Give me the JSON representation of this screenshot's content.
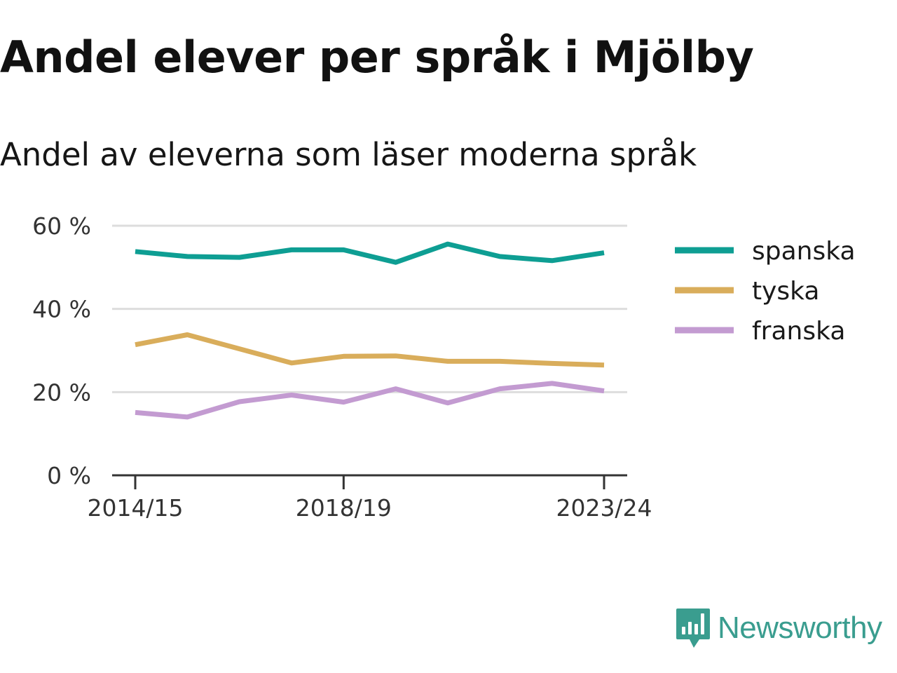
{
  "header": {
    "title": "Andel elever per språk i Mjölby",
    "subtitle": "Andel av eleverna som läser moderna språk"
  },
  "brand": {
    "name": "Newsworthy",
    "icon": "newsworthy-logo-icon",
    "color": "#3a9d8f"
  },
  "chart_data": {
    "type": "line",
    "x": [
      "2014/15",
      "2015/16",
      "2016/17",
      "2017/18",
      "2018/19",
      "2019/20",
      "2020/21",
      "2021/22",
      "2022/23",
      "2023/24"
    ],
    "x_tick_labels": [
      "2014/15",
      "2018/19",
      "2023/24"
    ],
    "y_ticks": [
      0,
      20,
      40,
      60
    ],
    "y_tick_labels": [
      "0 %",
      "20 %",
      "40 %",
      "60 %"
    ],
    "ylim": [
      0,
      60
    ],
    "grid": true,
    "legend_position": "right",
    "series": [
      {
        "name": "spanska",
        "color": "#0e9e93",
        "values": [
          53.8,
          52.6,
          52.4,
          54.2,
          54.2,
          51.2,
          55.6,
          52.6,
          51.6,
          53.5
        ]
      },
      {
        "name": "tyska",
        "color": "#d9ad5b",
        "values": [
          31.4,
          33.8,
          30.4,
          27.0,
          28.6,
          28.7,
          27.4,
          27.4,
          26.9,
          26.5
        ]
      },
      {
        "name": "franska",
        "color": "#c39bd1",
        "values": [
          15.1,
          14.0,
          17.7,
          19.3,
          17.6,
          20.8,
          17.4,
          20.8,
          22.1,
          20.3
        ]
      }
    ]
  }
}
